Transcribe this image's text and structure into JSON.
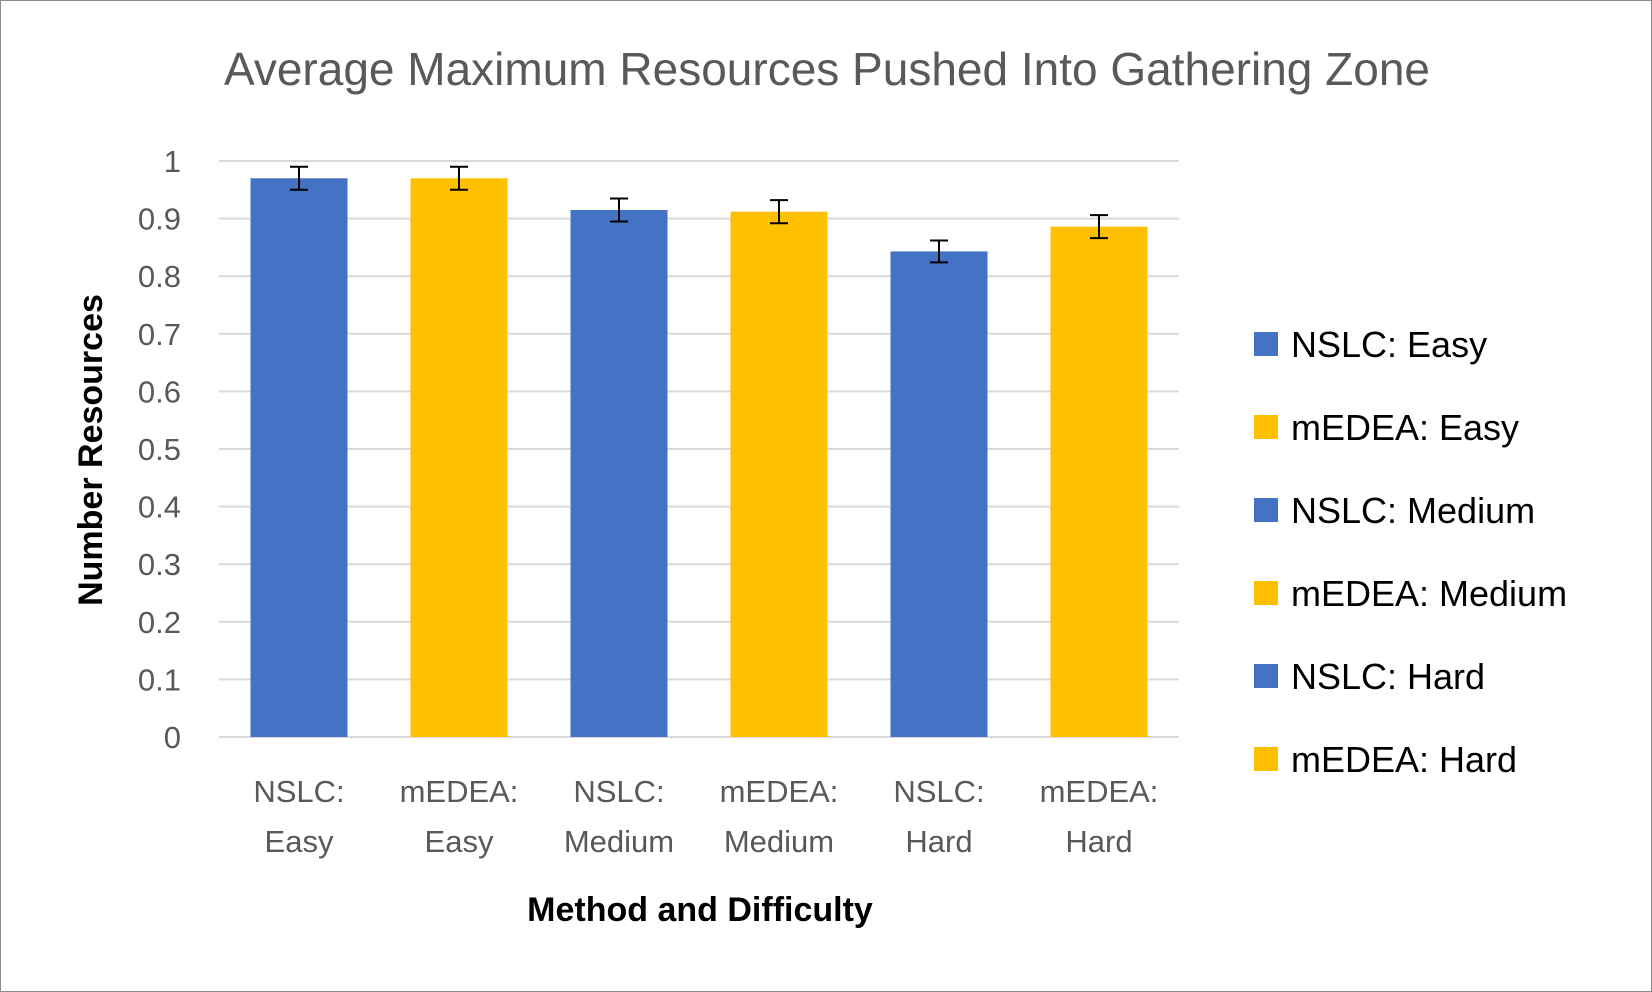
{
  "chart_data": {
    "type": "bar",
    "title": "Average Maximum Resources Pushed Into Gathering Zone",
    "xlabel": "Method and Difficulty",
    "ylabel": "Number Resources",
    "ylim": [
      0,
      1
    ],
    "yticks": [
      "0",
      "0.1",
      "0.2",
      "0.3",
      "0.4",
      "0.5",
      "0.6",
      "0.7",
      "0.8",
      "0.9",
      "1"
    ],
    "grid": true,
    "legend_position": "right",
    "categories": [
      "NSLC: Easy",
      "mEDEA: Easy",
      "NSLC: Medium",
      "mEDEA: Medium",
      "NSLC: Hard",
      "mEDEA: Hard"
    ],
    "category_lines": [
      [
        "NSLC:",
        "Easy"
      ],
      [
        "mEDEA:",
        "Easy"
      ],
      [
        "NSLC:",
        "Medium"
      ],
      [
        "mEDEA:",
        "Medium"
      ],
      [
        "NSLC:",
        "Hard"
      ],
      [
        "mEDEA:",
        "Hard"
      ]
    ],
    "values": [
      0.97,
      0.97,
      0.915,
      0.912,
      0.843,
      0.886
    ],
    "error": [
      0.02,
      0.02,
      0.02,
      0.02,
      0.019,
      0.02
    ],
    "colors": [
      "#4472C4",
      "#FFC000",
      "#4472C4",
      "#FFC000",
      "#4472C4",
      "#FFC000"
    ],
    "legend": [
      "NSLC: Easy",
      "mEDEA: Easy",
      "NSLC: Medium",
      "mEDEA: Medium",
      "NSLC: Hard",
      "mEDEA: Hard"
    ]
  }
}
